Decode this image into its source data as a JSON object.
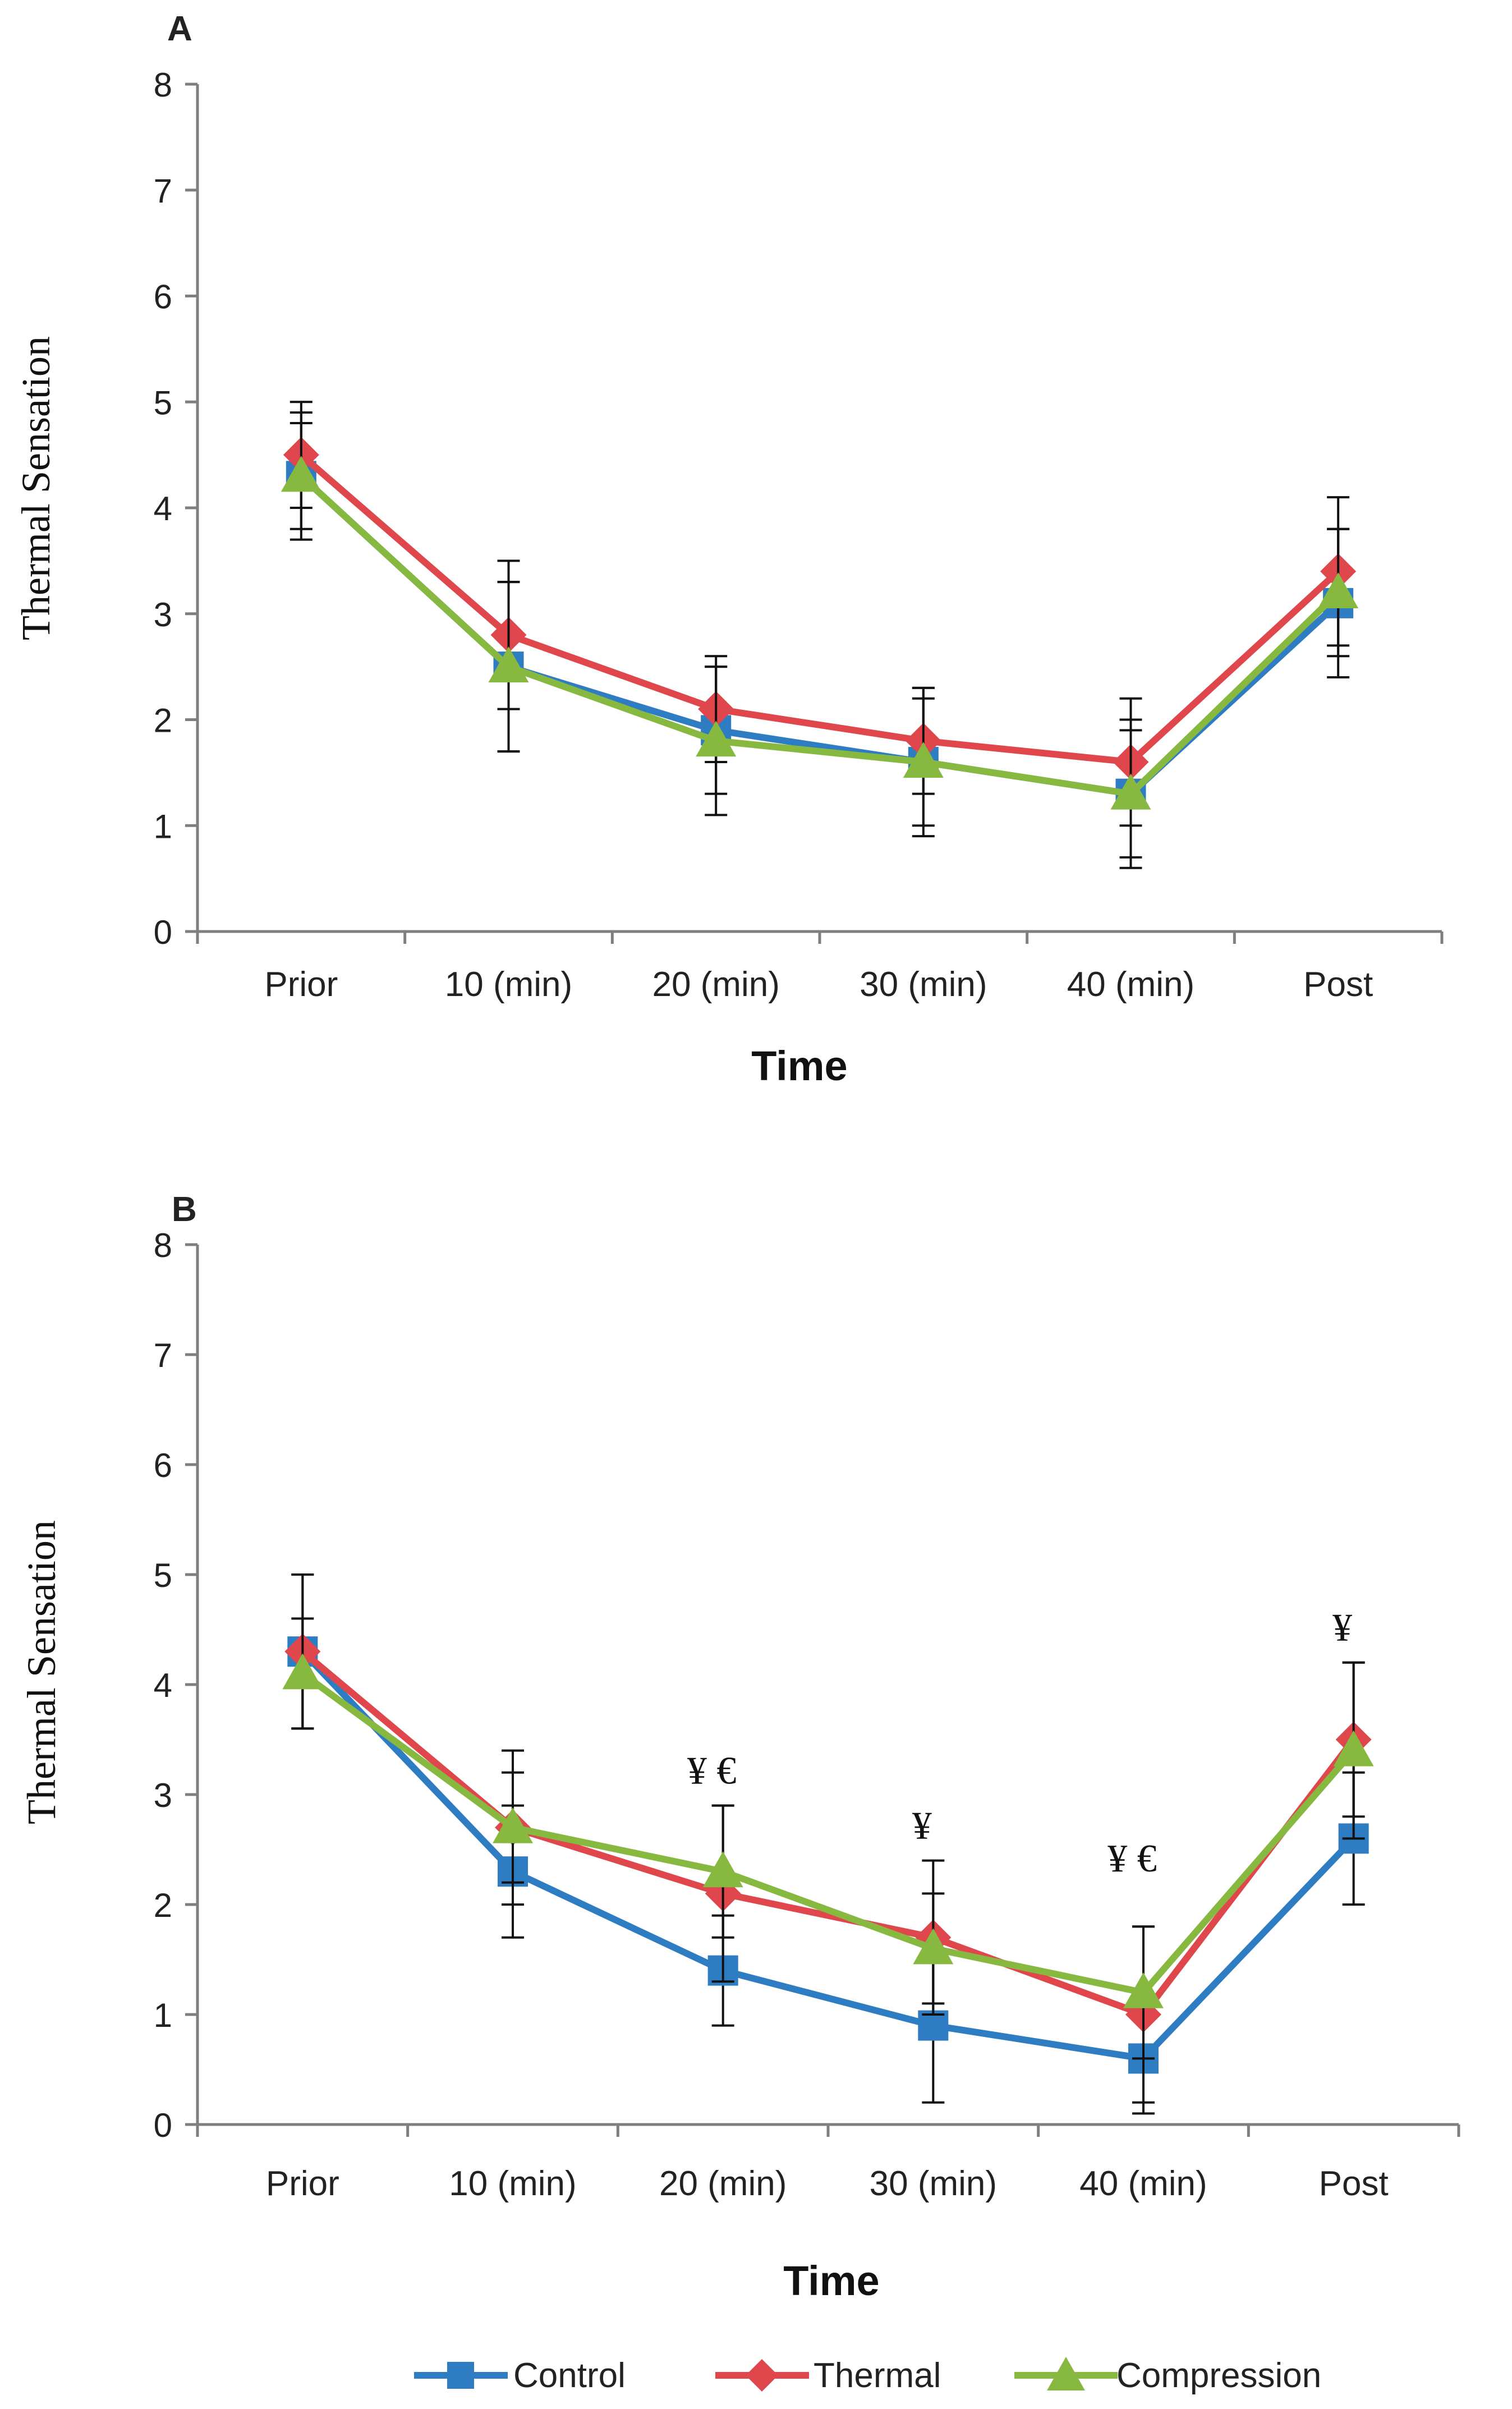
{
  "figure": {
    "legend": [
      {
        "name": "Control",
        "color": "#2e7dc3",
        "marker": "square"
      },
      {
        "name": "Thermal",
        "color": "#e0474c",
        "marker": "diamond"
      },
      {
        "name": "Compression",
        "color": "#87b940",
        "marker": "triangle"
      }
    ]
  },
  "chart_data": [
    {
      "type": "line",
      "panel_label": "A",
      "title": "",
      "xlabel": "Time",
      "ylabel": "Thermal Sensation",
      "categories": [
        "Prior",
        "10 (min)",
        "20 (min)",
        "30 (min)",
        "40 (min)",
        "Post"
      ],
      "ylim": [
        0,
        8
      ],
      "yticks": [
        "0",
        "1",
        "2",
        "3",
        "4",
        "5",
        "6",
        "7",
        "8"
      ],
      "grid": false,
      "series": [
        {
          "name": "Control",
          "color": "#2e7dc3",
          "marker": "square",
          "values": [
            4.3,
            2.5,
            1.9,
            1.6,
            1.3,
            3.1
          ],
          "errors": [
            0.5,
            0.8,
            0.6,
            0.6,
            0.6,
            0.7
          ]
        },
        {
          "name": "Thermal",
          "color": "#e0474c",
          "marker": "diamond",
          "values": [
            4.5,
            2.8,
            2.1,
            1.8,
            1.6,
            3.4
          ],
          "errors": [
            0.5,
            0.7,
            0.5,
            0.5,
            0.6,
            0.7
          ]
        },
        {
          "name": "Compression",
          "color": "#87b940",
          "marker": "triangle",
          "values": [
            4.3,
            2.5,
            1.8,
            1.6,
            1.3,
            3.2
          ],
          "errors": [
            0.6,
            0.8,
            0.7,
            0.7,
            0.7,
            0.6
          ]
        }
      ],
      "annotations": []
    },
    {
      "type": "line",
      "panel_label": "B",
      "title": "",
      "xlabel": "Time",
      "ylabel": "Thermal Sensation",
      "categories": [
        "Prior",
        "10 (min)",
        "20 (min)",
        "30 (min)",
        "40 (min)",
        "Post"
      ],
      "ylim": [
        0,
        8
      ],
      "yticks": [
        "0",
        "1",
        "2",
        "3",
        "4",
        "5",
        "6",
        "7",
        "8"
      ],
      "grid": false,
      "series": [
        {
          "name": "Control",
          "color": "#2e7dc3",
          "marker": "square",
          "values": [
            4.3,
            2.3,
            1.4,
            0.9,
            0.6,
            2.6
          ],
          "errors": [
            0.7,
            0.6,
            0.5,
            0.7,
            0.5,
            0.6
          ]
        },
        {
          "name": "Thermal",
          "color": "#e0474c",
          "marker": "diamond",
          "values": [
            4.3,
            2.7,
            2.1,
            1.7,
            1.0,
            3.5
          ],
          "errors": [
            0.7,
            0.7,
            0.8,
            0.7,
            0.8,
            0.7
          ]
        },
        {
          "name": "Compression",
          "color": "#87b940",
          "marker": "triangle",
          "values": [
            4.1,
            2.7,
            2.3,
            1.6,
            1.2,
            3.4
          ],
          "errors": [
            0.5,
            0.5,
            0.6,
            0.5,
            0.6,
            0.8
          ]
        }
      ],
      "annotations": [
        {
          "category": "20 (min)",
          "text": "¥ €",
          "y": 3.1
        },
        {
          "category": "30 (min)",
          "text": "¥",
          "y": 2.6
        },
        {
          "category": "40 (min)",
          "text": "¥ €",
          "y": 2.3
        },
        {
          "category": "Post",
          "text": "¥",
          "y": 4.4
        }
      ]
    }
  ]
}
